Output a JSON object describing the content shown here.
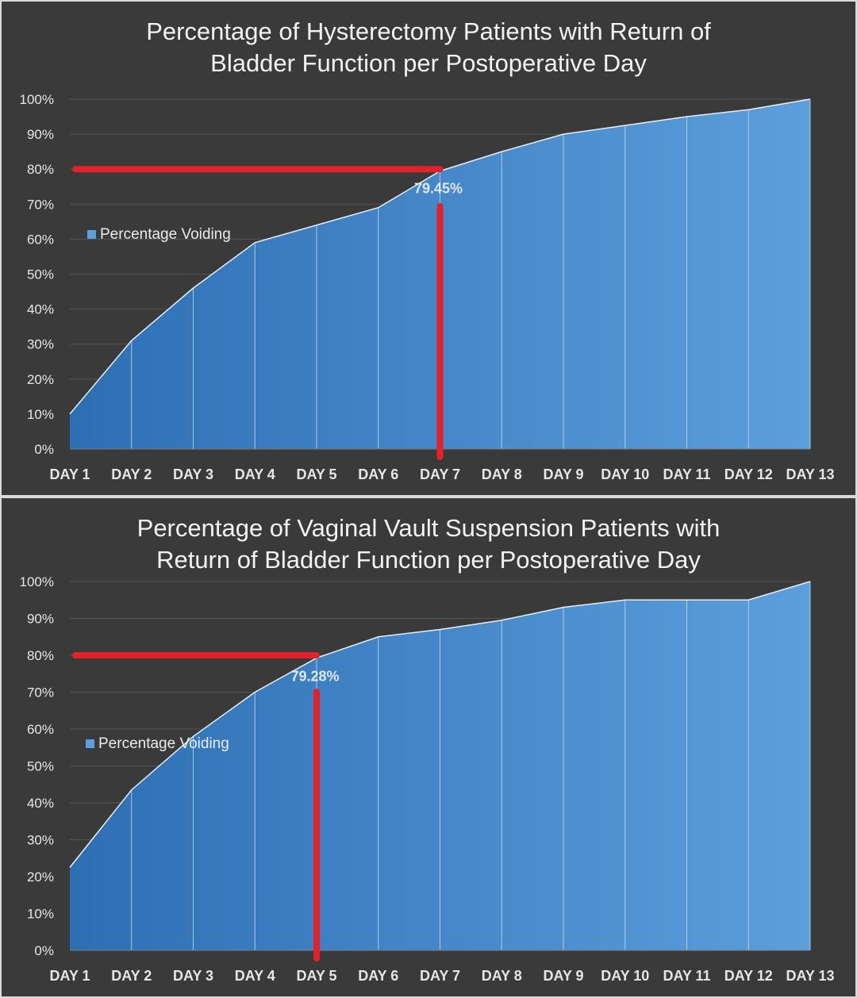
{
  "chart_data": [
    {
      "type": "area",
      "title_lines": [
        "Percentage of Hysterectomy Patients with  Return of",
        "Bladder Function per Postoperative Day"
      ],
      "categories": [
        "DAY 1",
        "DAY 2",
        "DAY 3",
        "DAY 4",
        "DAY 5",
        "DAY 6",
        "DAY 7",
        "DAY 8",
        "DAY 9",
        "DAY 10",
        "DAY 11",
        "DAY 12",
        "DAY 13"
      ],
      "series": [
        {
          "name": "Percentage Voiding",
          "values": [
            10,
            31,
            46,
            59,
            64,
            69,
            79.45,
            85,
            90,
            92.5,
            95,
            97,
            100
          ]
        }
      ],
      "y_tick_labels": [
        "0%",
        "10%",
        "20%",
        "30%",
        "40%",
        "50%",
        "60%",
        "70%",
        "80%",
        "90%",
        "100%"
      ],
      "ylim": [
        0,
        100
      ],
      "grid": true,
      "legend_position": "left",
      "annotation": {
        "label": "79.45%",
        "category_index": 6,
        "reference_y": 80
      },
      "colors": {
        "area_left": "#2e6fb4",
        "area_right": "#5c9fdc",
        "highlight": "#e3212b"
      }
    },
    {
      "type": "area",
      "title_lines": [
        "Percentage of Vaginal Vault Suspension Patients with",
        "Return of Bladder Function per Postoperative Day"
      ],
      "categories": [
        "DAY 1",
        "DAY 2",
        "DAY 3",
        "DAY 4",
        "DAY 5",
        "DAY 6",
        "DAY 7",
        "DAY 8",
        "DAY 9",
        "DAY 10",
        "DAY 11",
        "DAY 12",
        "DAY 13"
      ],
      "series": [
        {
          "name": "Percentage Voiding",
          "values": [
            22.5,
            43.5,
            58,
            70,
            79.28,
            85,
            87,
            89.5,
            93,
            95,
            95,
            95,
            100
          ]
        }
      ],
      "y_tick_labels": [
        "0%",
        "10%",
        "20%",
        "30%",
        "40%",
        "50%",
        "60%",
        "70%",
        "80%",
        "90%",
        "100%"
      ],
      "ylim": [
        0,
        100
      ],
      "grid": true,
      "legend_position": "left",
      "annotation": {
        "label": "79.28%",
        "category_index": 4,
        "reference_y": 80
      },
      "colors": {
        "area_left": "#2e6fb4",
        "area_right": "#5c9fdc",
        "highlight": "#e3212b"
      }
    }
  ]
}
